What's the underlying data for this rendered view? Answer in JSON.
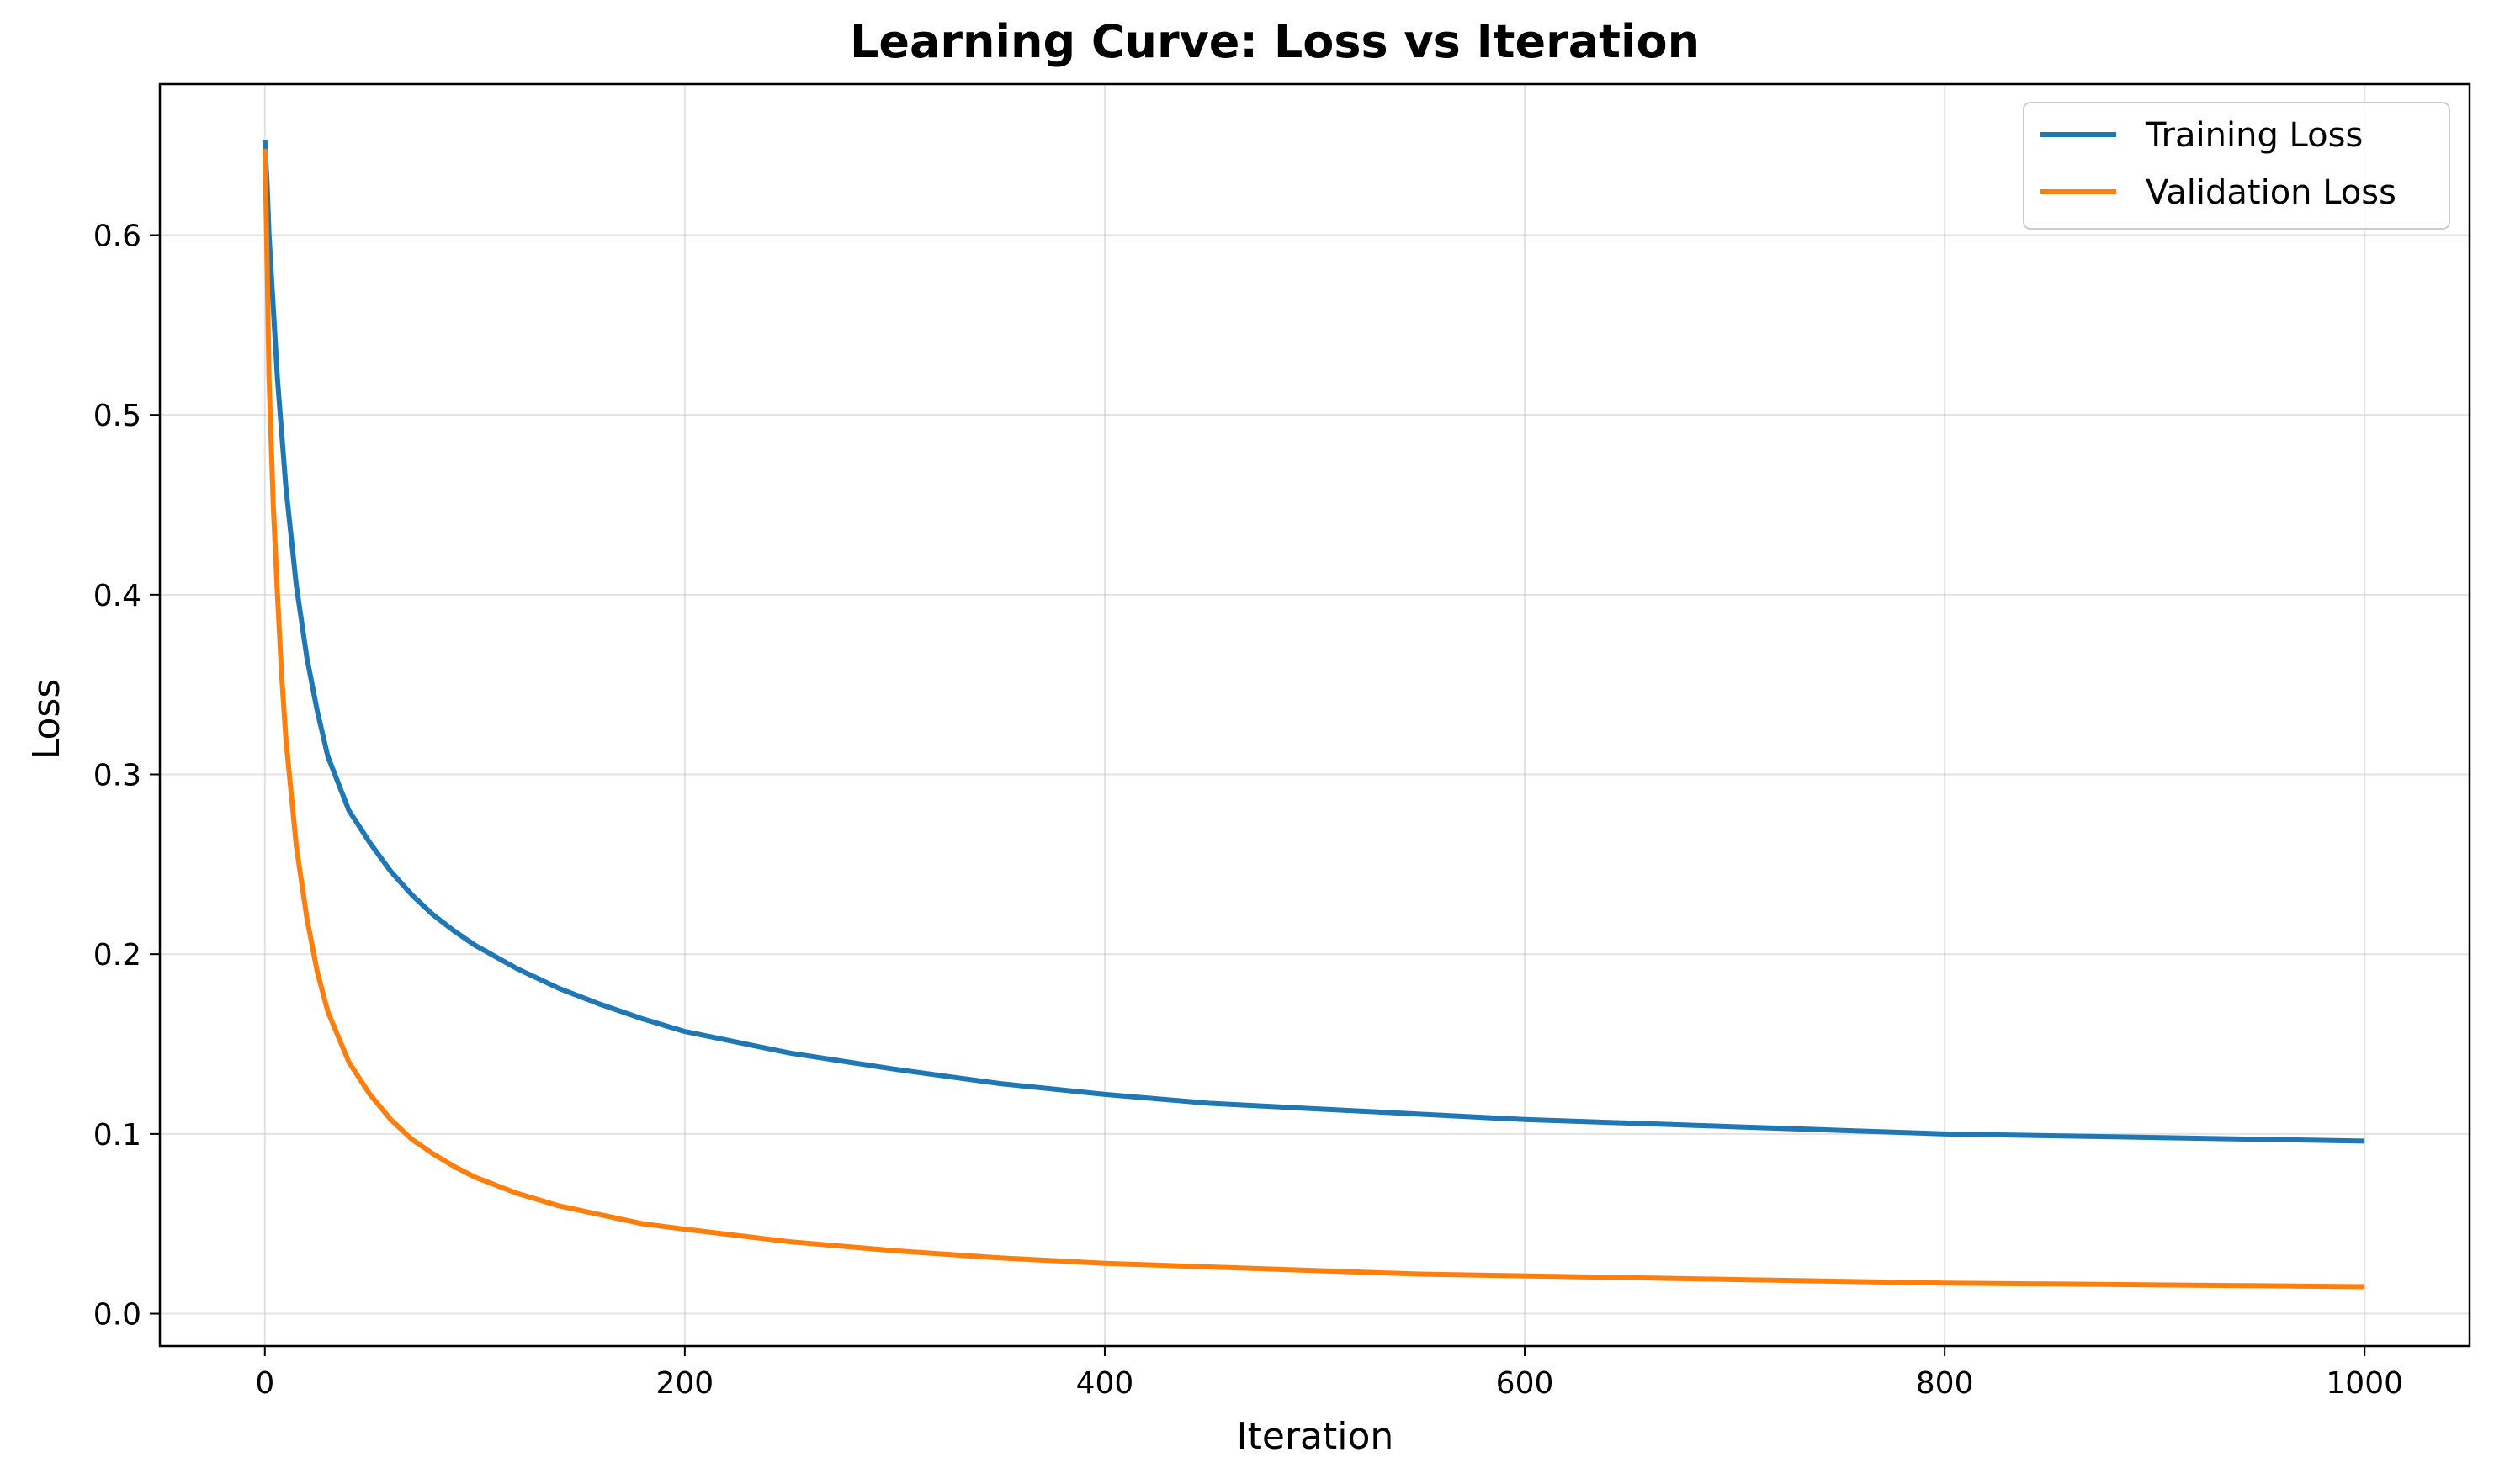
{
  "chart_data": {
    "type": "line",
    "title": "Learning Curve: Loss vs Iteration",
    "xlabel": "Iteration",
    "ylabel": "Loss",
    "xlim": [
      -50,
      1050
    ],
    "ylim": [
      -0.018,
      0.684
    ],
    "xticks": [
      0,
      200,
      400,
      600,
      800,
      1000
    ],
    "yticks": [
      0.0,
      0.1,
      0.2,
      0.3,
      0.4,
      0.5,
      0.6
    ],
    "xtick_labels": [
      "0",
      "200",
      "400",
      "600",
      "800",
      "1000"
    ],
    "ytick_labels": [
      "0.0",
      "0.1",
      "0.2",
      "0.3",
      "0.4",
      "0.5",
      "0.6"
    ],
    "grid": true,
    "legend_position": "top-right",
    "x": [
      0,
      1,
      2,
      4,
      6,
      8,
      10,
      15,
      20,
      25,
      30,
      40,
      50,
      60,
      70,
      80,
      90,
      100,
      120,
      140,
      160,
      180,
      200,
      250,
      300,
      350,
      400,
      450,
      500,
      550,
      600,
      650,
      700,
      750,
      800,
      850,
      900,
      950,
      1000
    ],
    "series": [
      {
        "name": "Training Loss",
        "color": "#1f77b4",
        "values": [
          0.653,
          0.63,
          0.6,
          0.56,
          0.52,
          0.49,
          0.46,
          0.405,
          0.365,
          0.335,
          0.31,
          0.28,
          0.262,
          0.246,
          0.233,
          0.222,
          0.213,
          0.205,
          0.192,
          0.181,
          0.172,
          0.164,
          0.157,
          0.145,
          0.136,
          0.128,
          0.122,
          0.117,
          0.114,
          0.111,
          0.108,
          0.106,
          0.104,
          0.102,
          0.1,
          0.099,
          0.098,
          0.097,
          0.096
        ]
      },
      {
        "name": "Validation Loss",
        "color": "#ff7f0e",
        "values": [
          0.648,
          0.59,
          0.52,
          0.45,
          0.4,
          0.355,
          0.32,
          0.26,
          0.22,
          0.19,
          0.168,
          0.14,
          0.122,
          0.108,
          0.097,
          0.089,
          0.082,
          0.076,
          0.067,
          0.06,
          0.055,
          0.05,
          0.047,
          0.04,
          0.035,
          0.031,
          0.028,
          0.026,
          0.024,
          0.022,
          0.021,
          0.02,
          0.019,
          0.018,
          0.017,
          0.0165,
          0.016,
          0.0155,
          0.015
        ]
      }
    ]
  }
}
